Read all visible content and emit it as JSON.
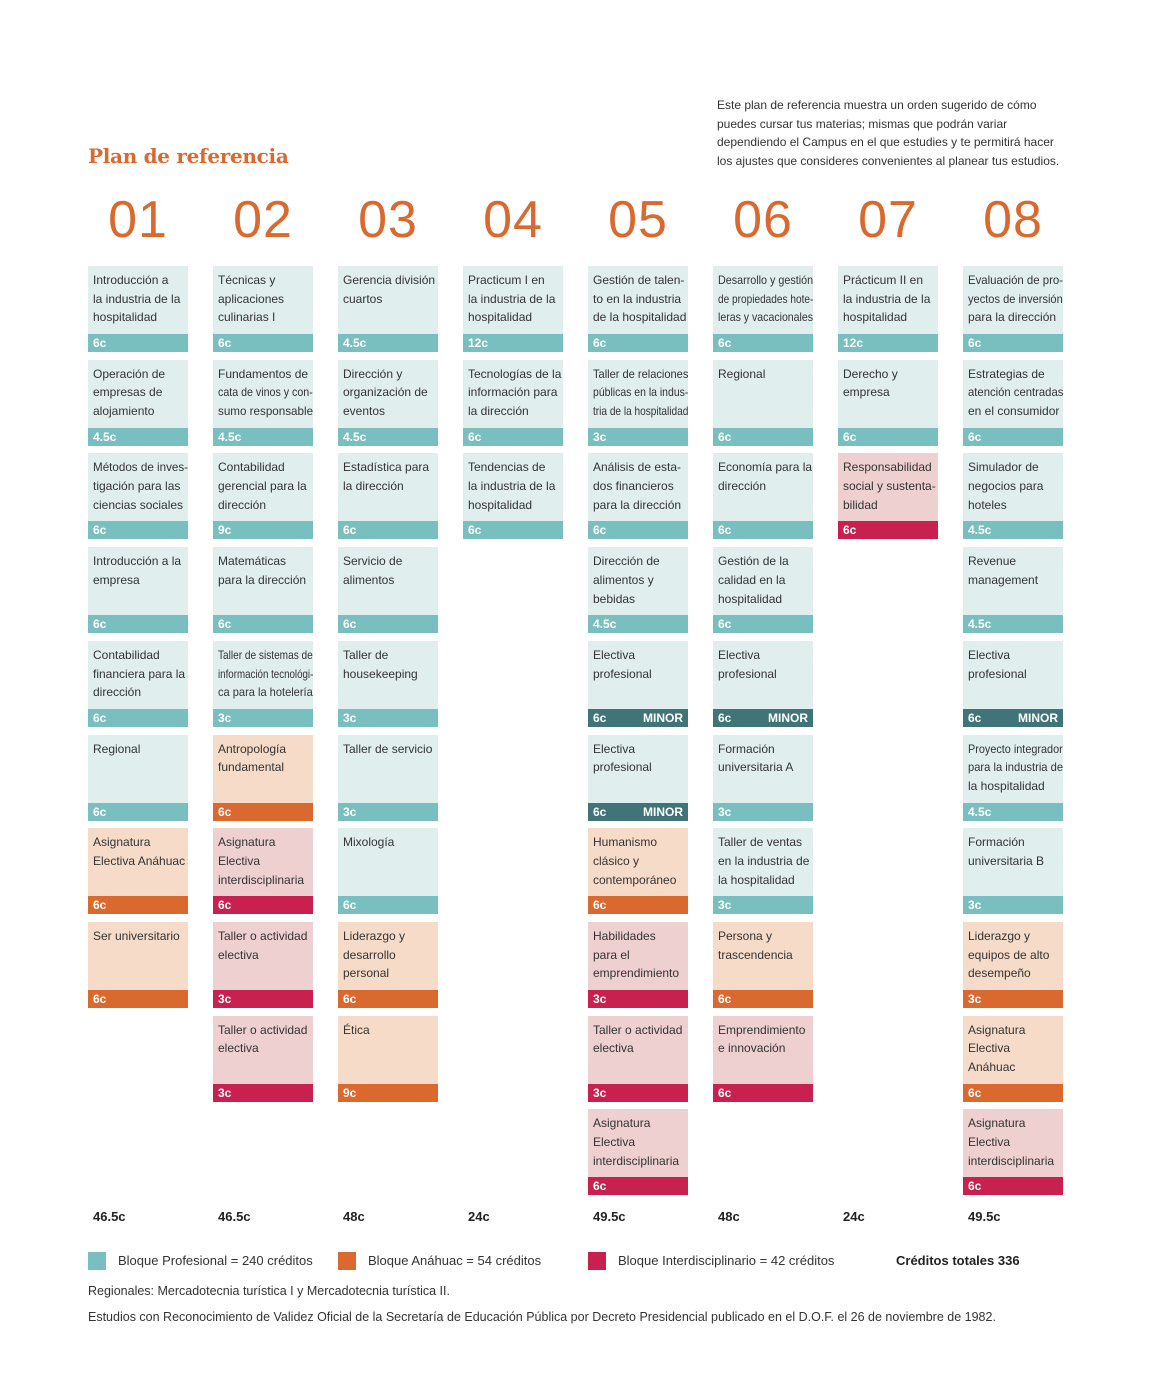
{
  "header": {
    "title": "Plan de referencia",
    "description": [
      "Este plan de referencia muestra un orden sugerido de cómo",
      "puedes cursar tus materias; mismas que podrán variar",
      "dependiendo el Campus en el que estudies y te permitirá hacer",
      "los ajustes que consideres convenientes al planear tus estudios."
    ]
  },
  "legend": [
    {
      "label": "Bloque Profesional = 240 créditos",
      "color": "#79bfbf",
      "light": "#e0eeee"
    },
    {
      "label": "Bloque Anáhuac = 54 créditos",
      "color": "#d9692e",
      "light": "#f6dcc8"
    },
    {
      "label": "Bloque Interdisciplinario = 42 créditos",
      "color": "#c8204f",
      "light": "#efd0d0"
    }
  ],
  "total_credits": "Créditos totales 336",
  "semesters": [
    {
      "number": "01",
      "total": "46.5c",
      "courses": [
        {
          "name": [
            "Introducción a",
            "la industria de la",
            "hospitalidad"
          ],
          "credits": "6c",
          "block": 0
        },
        {
          "name": [
            "Operación de",
            "empresas de",
            "alojamiento"
          ],
          "credits": "4.5c",
          "block": 0
        },
        {
          "name": [
            "Métodos de inves-",
            "tigación para las",
            "ciencias sociales"
          ],
          "credits": "6c",
          "block": 0
        },
        {
          "name": [
            "Introducción a la",
            "empresa"
          ],
          "credits": "6c",
          "block": 0
        },
        {
          "name": [
            "Contabilidad",
            "financiera para la",
            "dirección"
          ],
          "credits": "6c",
          "block": 0
        },
        {
          "name": [
            "Regional"
          ],
          "credits": "6c",
          "block": 0
        },
        {
          "name": [
            "Asignatura",
            "Electiva Anáhuac"
          ],
          "credits": "6c",
          "block": 1
        },
        {
          "name": [
            "Ser universitario"
          ],
          "credits": "6c",
          "block": 1
        }
      ]
    },
    {
      "number": "02",
      "total": "46.5c",
      "courses": [
        {
          "name": [
            "Técnicas y",
            "aplicaciones",
            "culinarias I"
          ],
          "credits": "6c",
          "block": 0
        },
        {
          "name": [
            "Fundamentos de",
            "cata de vinos y con-",
            "sumo responsable"
          ],
          "credits": "4.5c",
          "block": 0
        },
        {
          "name": [
            "Contabilidad",
            "gerencial para la",
            "dirección"
          ],
          "credits": "9c",
          "block": 0
        },
        {
          "name": [
            "Matemáticas",
            "para la dirección"
          ],
          "credits": "6c",
          "block": 0
        },
        {
          "name": [
            "Taller de sistemas de",
            "información tecnológi-",
            "ca para la hotelería"
          ],
          "credits": "3c",
          "block": 0
        },
        {
          "name": [
            "Antropología",
            "fundamental"
          ],
          "credits": "6c",
          "block": 1
        },
        {
          "name": [
            "Asignatura",
            "Electiva",
            "interdisciplinaria"
          ],
          "credits": "6c",
          "block": 2
        },
        {
          "name": [
            "Taller o actividad",
            "electiva"
          ],
          "credits": "3c",
          "block": 2
        },
        {
          "name": [
            "Taller o actividad",
            "electiva"
          ],
          "credits": "3c",
          "block": 2
        }
      ]
    },
    {
      "number": "03",
      "total": "48c",
      "courses": [
        {
          "name": [
            "Gerencia división",
            "cuartos"
          ],
          "credits": "4.5c",
          "block": 0
        },
        {
          "name": [
            "Dirección y",
            "organización de",
            "eventos"
          ],
          "credits": "4.5c",
          "block": 0
        },
        {
          "name": [
            "Estadística  para",
            "la dirección"
          ],
          "credits": "6c",
          "block": 0
        },
        {
          "name": [
            "Servicio de",
            "alimentos"
          ],
          "credits": "6c",
          "block": 0
        },
        {
          "name": [
            "Taller de",
            "housekeeping"
          ],
          "credits": "3c",
          "block": 0
        },
        {
          "name": [
            "Taller de servicio"
          ],
          "credits": "3c",
          "block": 0
        },
        {
          "name": [
            "Mixología"
          ],
          "credits": "6c",
          "block": 0
        },
        {
          "name": [
            "Liderazgo y",
            "desarrollo",
            "personal"
          ],
          "credits": "6c",
          "block": 1
        },
        {
          "name": [
            "Ética"
          ],
          "credits": "9c",
          "block": 1
        }
      ]
    },
    {
      "number": "04",
      "total": "24c",
      "courses": [
        {
          "name": [
            "Practicum I en",
            "la industria de la",
            "hospitalidad"
          ],
          "credits": "12c",
          "block": 0
        },
        {
          "name": [
            "Tecnologías de la",
            "información para",
            "la dirección"
          ],
          "credits": "6c",
          "block": 0
        },
        {
          "name": [
            "Tendencias de",
            "la industria de la",
            "hospitalidad"
          ],
          "credits": "6c",
          "block": 0
        }
      ]
    },
    {
      "number": "05",
      "total": "49.5c",
      "courses": [
        {
          "name": [
            "Gestión de talen-",
            "to en la industria",
            "de la hospitalidad"
          ],
          "credits": "6c",
          "block": 0
        },
        {
          "name": [
            "Taller de relaciones",
            "públicas en la indus-",
            "tria de la hospitalidad"
          ],
          "credits": "3c",
          "block": 0
        },
        {
          "name": [
            "Análisis de esta-",
            "dos financieros",
            "para la dirección"
          ],
          "credits": "6c",
          "block": 0
        },
        {
          "name": [
            "Dirección de",
            "alimentos y",
            "bebidas"
          ],
          "credits": "4.5c",
          "block": 0
        },
        {
          "name": [
            "Electiva",
            "profesional"
          ],
          "credits": "6c",
          "block": 0,
          "tag": "MINOR"
        },
        {
          "name": [
            "Electiva",
            "profesional"
          ],
          "credits": "6c",
          "block": 0,
          "tag": "MINOR"
        },
        {
          "name": [
            "Humanismo",
            "clásico y",
            "contemporáneo"
          ],
          "credits": "6c",
          "block": 1
        },
        {
          "name": [
            "Habilidades",
            "para el",
            "emprendimiento"
          ],
          "credits": "3c",
          "block": 2
        },
        {
          "name": [
            "Taller o actividad",
            "electiva"
          ],
          "credits": "3c",
          "block": 2
        },
        {
          "name": [
            "Asignatura",
            "Electiva",
            " interdisciplinaria"
          ],
          "credits": "6c",
          "block": 2
        }
      ]
    },
    {
      "number": "06",
      "total": "48c",
      "courses": [
        {
          "name": [
            "Desarrollo y gestión",
            "de propiedades hote-",
            "leras y vacacionales"
          ],
          "credits": "6c",
          "block": 0
        },
        {
          "name": [
            "Regional"
          ],
          "credits": "6c",
          "block": 0
        },
        {
          "name": [
            "Economía para la",
            "dirección"
          ],
          "credits": "6c",
          "block": 0
        },
        {
          "name": [
            "Gestión de la",
            "calidad en  la",
            "hospitalidad"
          ],
          "credits": "6c",
          "block": 0
        },
        {
          "name": [
            "Electiva",
            "profesional"
          ],
          "credits": "6c",
          "block": 0,
          "tag": "MINOR"
        },
        {
          "name": [
            "Formación",
            "universitaria A"
          ],
          "credits": "3c",
          "block": 0
        },
        {
          "name": [
            "Taller de ventas",
            "en la industria de",
            "la hospitalidad"
          ],
          "credits": "3c",
          "block": 0
        },
        {
          "name": [
            "Persona y",
            "trascendencia"
          ],
          "credits": "6c",
          "block": 1
        },
        {
          "name": [
            "Emprendimiento",
            "e innovación"
          ],
          "credits": "6c",
          "block": 2
        }
      ]
    },
    {
      "number": "07",
      "total": "24c",
      "courses": [
        {
          "name": [
            "Prácticum II en",
            "la industria de la",
            "hospitalidad"
          ],
          "credits": "12c",
          "block": 0
        },
        {
          "name": [
            "Derecho y",
            "empresa"
          ],
          "credits": "6c",
          "block": 0
        },
        {
          "name": [
            "Responsabilidad",
            "social y sustenta-",
            "bilidad"
          ],
          "credits": "6c",
          "block": 2
        }
      ]
    },
    {
      "number": "08",
      "total": "49.5c",
      "courses": [
        {
          "name": [
            "Evaluación de pro-",
            "yectos de inversión",
            "para la dirección"
          ],
          "credits": "6c",
          "block": 0
        },
        {
          "name": [
            "Estrategias de",
            "atención centradas",
            "en el consumidor"
          ],
          "credits": "6c",
          "block": 0
        },
        {
          "name": [
            "Simulador de",
            "negocios para",
            "hoteles"
          ],
          "credits": "4.5c",
          "block": 0
        },
        {
          "name": [
            "Revenue",
            "management"
          ],
          "credits": "4.5c",
          "block": 0
        },
        {
          "name": [
            "Electiva",
            "profesional"
          ],
          "credits": "6c",
          "block": 0,
          "tag": "MINOR"
        },
        {
          "name": [
            "Proyecto integrador",
            "para la industria de",
            "la hospitalidad"
          ],
          "credits": "4.5c",
          "block": 0
        },
        {
          "name": [
            "Formación",
            "universitaria B"
          ],
          "credits": "3c",
          "block": 0
        },
        {
          "name": [
            "Liderazgo y",
            "equipos de alto",
            "desempeño"
          ],
          "credits": "3c",
          "block": 1
        },
        {
          "name": [
            "Asignatura",
            "Electiva",
            "Anáhuac"
          ],
          "credits": "6c",
          "block": 1
        },
        {
          "name": [
            "Asignatura",
            "Electiva",
            "interdisciplinaria"
          ],
          "credits": "6c",
          "block": 2
        }
      ]
    }
  ],
  "notes": [
    "Regionales: Mercadotecnia turística I y Mercadotecnia turística II.",
    "Estudios con Reconocimiento de Validez Oficial de la Secretaría de Educación Pública por Decreto Presidencial publicado en el D.O.F. el 26 de noviembre de 1982."
  ]
}
